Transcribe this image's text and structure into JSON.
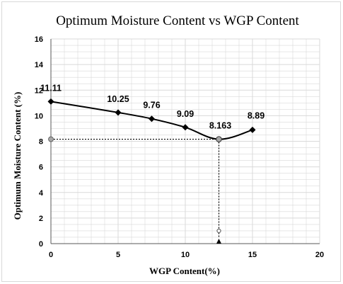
{
  "chart_data": {
    "type": "line",
    "title": "Optimum Moisture Content vs WGP  Content",
    "xlabel": "WGP Content(%)",
    "ylabel": "Optimum Moisture Content (%)",
    "xlim": [
      0,
      20
    ],
    "ylim": [
      0,
      16
    ],
    "x_ticks": [
      "0",
      "5",
      "10",
      "15",
      "20"
    ],
    "y_ticks": [
      "0",
      "2",
      "4",
      "6",
      "8",
      "10",
      "12",
      "14",
      "16"
    ],
    "grid": true,
    "series": [
      {
        "x": [
          0,
          5,
          7.5,
          10,
          12.5,
          15
        ],
        "values": [
          11.11,
          10.25,
          9.76,
          9.09,
          8.163,
          8.89
        ],
        "labels": [
          "11.11",
          "10.25",
          "9.76",
          "9.09",
          "8.163",
          "8.89"
        ]
      }
    ],
    "annotations": {
      "optimum_x": 12.5,
      "optimum_y": 8.163
    },
    "colors": {
      "line": "#000000",
      "grid": "#d9d9d9",
      "marker_highlight": "#a6a6a6"
    }
  }
}
